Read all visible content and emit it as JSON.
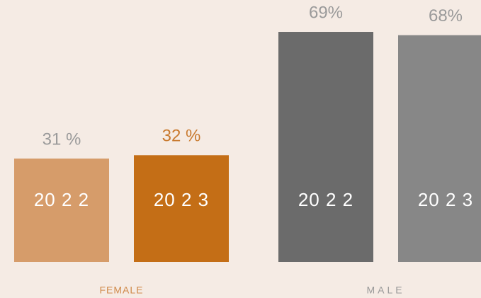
{
  "chart_data": {
    "type": "bar",
    "categories": [
      "FEMALE",
      "MALE"
    ],
    "series": [
      {
        "name": "20 2 2",
        "colors": [
          "#d69c6a",
          "#6b6b6b"
        ],
        "values": [
          31,
          69
        ],
        "value_labels": [
          "31 %",
          "69%"
        ]
      },
      {
        "name": "20 2 3",
        "colors": [
          "#c46e16",
          "#878787"
        ],
        "values": [
          32,
          68
        ],
        "value_labels": [
          "32 %",
          "68%"
        ]
      }
    ]
  }
}
